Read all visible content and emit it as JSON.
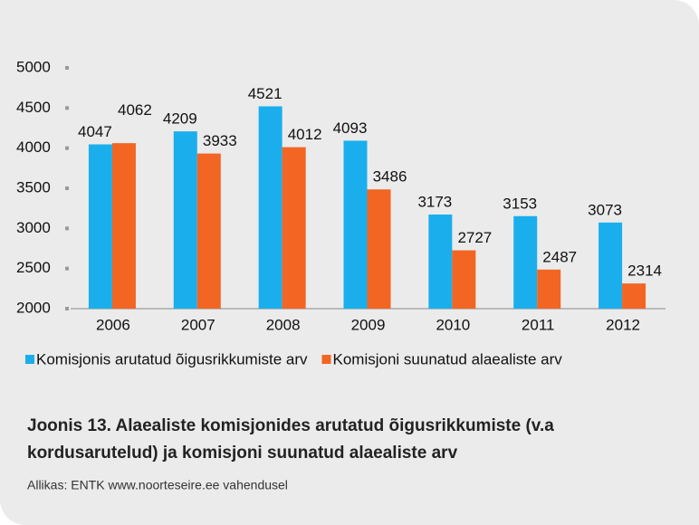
{
  "chart_data": {
    "type": "bar",
    "categories": [
      "2006",
      "2007",
      "2008",
      "2009",
      "2010",
      "2011",
      "2012"
    ],
    "series": [
      {
        "name": "Komisjonis arutatud õigusrikkumiste arv",
        "color": "#1aafec",
        "values": [
          4047,
          4209,
          4521,
          4093,
          3173,
          3153,
          3073
        ]
      },
      {
        "name": "Komisjoni suunatud alaealiste arv",
        "color": "#f26522",
        "values": [
          4062,
          3933,
          4012,
          3486,
          2727,
          2487,
          2314
        ]
      }
    ],
    "ylim": [
      2000,
      5000
    ],
    "yticks": [
      2000,
      2500,
      3000,
      3500,
      4000,
      4500,
      5000
    ],
    "legend": "bottom",
    "caption": [
      "Joonis 13. Alaealiste komisjonides arutatud õigusrikkumiste (v.a",
      "kordusarutelud) ja komisjoni suunatud alaealiste arv"
    ],
    "source": "Allikas: ENTK www.noorteseire.ee vahendusel"
  }
}
